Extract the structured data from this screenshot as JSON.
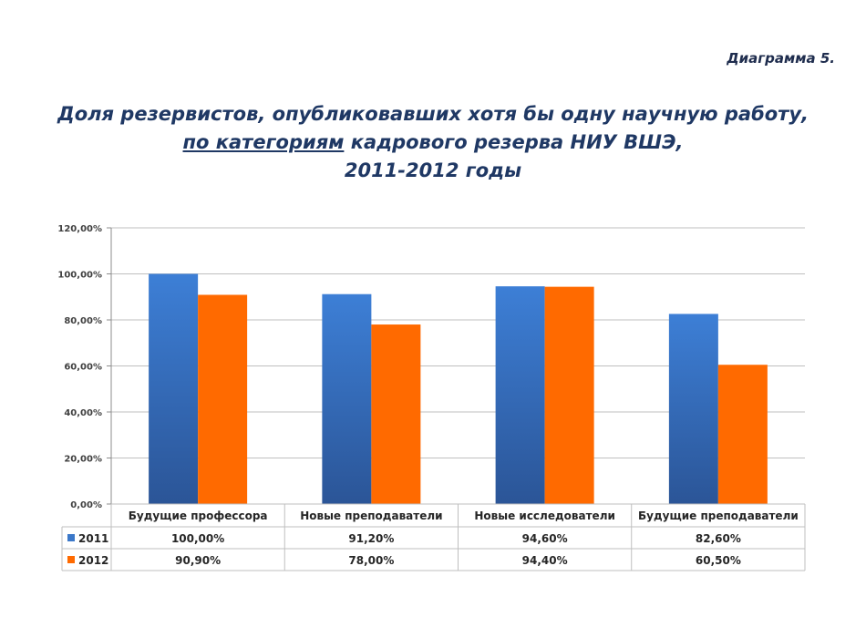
{
  "diagram_label": "Диаграмма 5.",
  "title_line1": "Доля резервистов, опубликовавших хотя бы одну научную работу,",
  "title_line2_underlined": "по категориям",
  "title_line2_rest": " кадрового резерва НИУ ВШЭ,",
  "title_line3": "2011-2012 годы",
  "colors": {
    "series_2011": "#3b78c9",
    "series_2011_dark": "#2a5496",
    "series_2012": "#ff6a00",
    "grid": "#bfbfbf"
  },
  "chart_data": {
    "type": "bar",
    "categories": [
      "Будущие профессора",
      "Новые преподаватели",
      "Новые исследователи",
      "Будущие преподаватели"
    ],
    "series": [
      {
        "name": "2011",
        "values": [
          100.0,
          91.2,
          94.6,
          82.6
        ],
        "labels": [
          "100,00%",
          "91,20%",
          "94,60%",
          "82,60%"
        ]
      },
      {
        "name": "2012",
        "values": [
          90.9,
          78.0,
          94.4,
          60.5
        ],
        "labels": [
          "90,90%",
          "78,00%",
          "94,40%",
          "60,50%"
        ]
      }
    ],
    "ylim": [
      0,
      120
    ],
    "yticks": [
      "0,00%",
      "20,00%",
      "40,00%",
      "60,00%",
      "80,00%",
      "100,00%",
      "120,00%"
    ],
    "grid": true,
    "legend": "data table"
  }
}
